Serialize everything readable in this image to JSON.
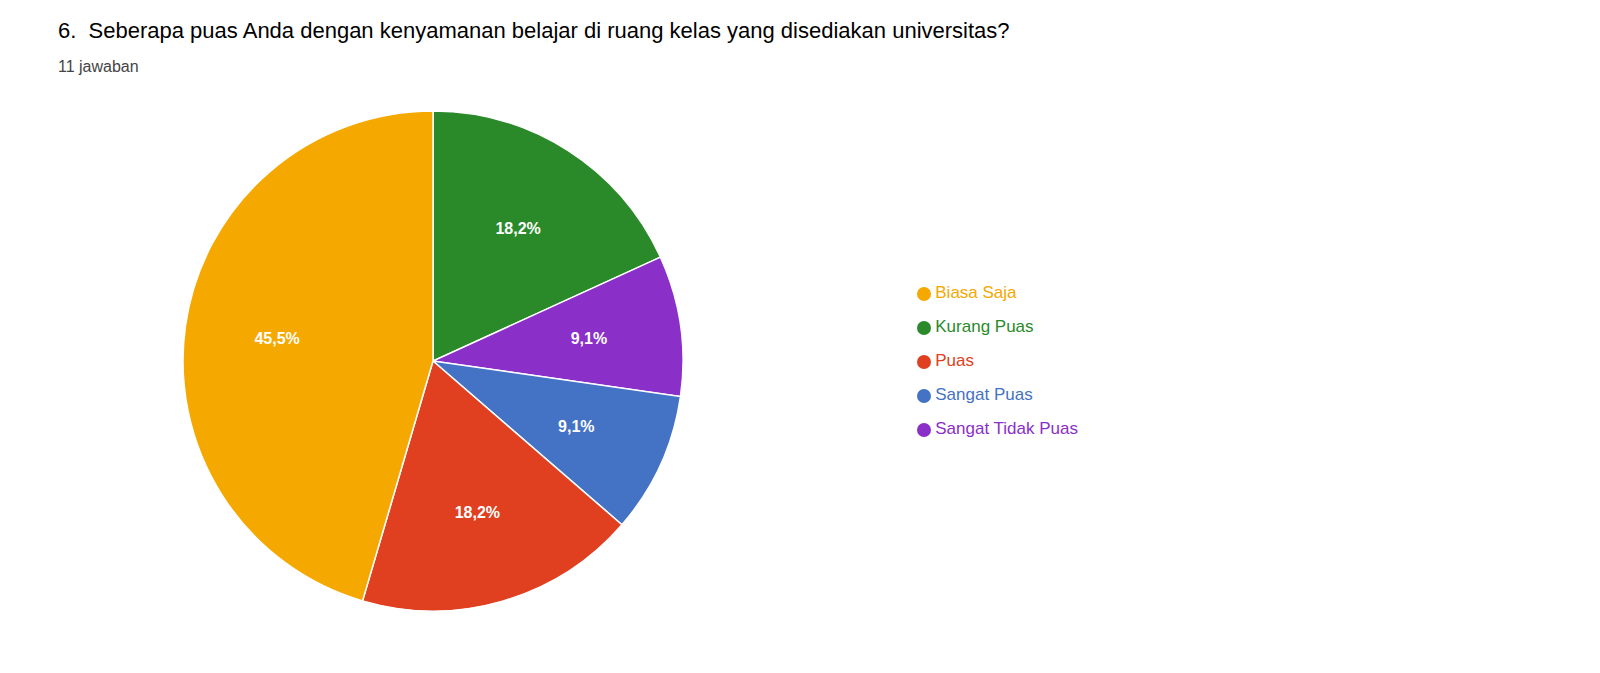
{
  "chart_data": {
    "type": "pie",
    "title": "6.  Seberapa puas Anda dengan kenyamanan belajar di ruang kelas yang disediakan universitas?",
    "subtitle": "11 jawaban",
    "categories": [
      "Kurang Puas",
      "Sangat Tidak Puas",
      "Sangat Puas",
      "Puas",
      "Biasa Saja"
    ],
    "values": [
      18.2,
      9.1,
      9.1,
      18.2,
      45.5
    ],
    "value_labels": [
      "18,2%",
      "9,1%",
      "9,1%",
      "18,2%",
      "45,5%"
    ],
    "colors": [
      "#2A8A2A",
      "#8B2FC9",
      "#4472C4",
      "#E04020",
      "#F5A800"
    ],
    "data_labels": true,
    "legend": "right"
  }
}
